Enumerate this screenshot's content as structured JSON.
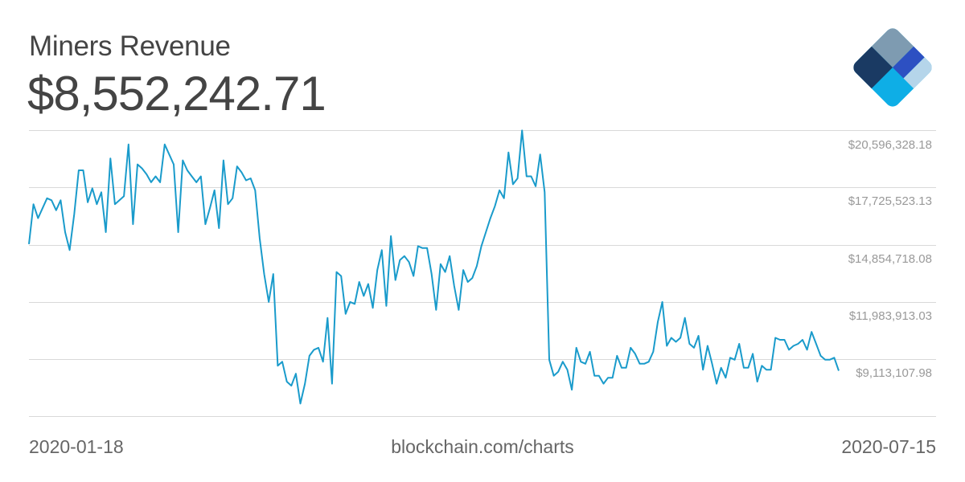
{
  "header": {
    "title": "Miners Revenue",
    "current_value": "$8,552,242.71"
  },
  "logo": {
    "name": "blockchain-logo",
    "colors": [
      "#7e9bb1",
      "#1a3a63",
      "#2d50c2",
      "#b5d5ea",
      "#0eaee6"
    ]
  },
  "footer": {
    "start_date": "2020-01-18",
    "source": "blockchain.com/charts",
    "end_date": "2020-07-15"
  },
  "colors": {
    "line": "#1a9bcb",
    "grid": "#d9d9d9",
    "title_text": "#444444",
    "tick_text": "#999999"
  },
  "chart_data": {
    "type": "line",
    "title": "Miners Revenue",
    "xlabel": "",
    "ylabel": "USD",
    "x_range": [
      "2020-01-18",
      "2020-07-15"
    ],
    "y_ticks": [
      "$20,596,328.18",
      "$17,725,523.13",
      "$14,854,718.08",
      "$11,983,913.03",
      "$9,113,107.98"
    ],
    "y_tick_values": [
      20596328.18,
      17725523.13,
      14854718.08,
      11983913.03,
      9113107.98
    ],
    "ylim": [
      6242302.93,
      20596328.18
    ],
    "grid": true,
    "legend": "none",
    "latest_value": 8552242.71,
    "series": [
      {
        "name": "Miners Revenue",
        "approx_values_musd": [
          14.9,
          16.9,
          16.2,
          16.7,
          17.2,
          17.1,
          16.6,
          17.1,
          15.5,
          14.6,
          16.4,
          18.6,
          18.6,
          17.0,
          17.7,
          16.9,
          17.5,
          15.5,
          19.2,
          16.9,
          17.1,
          17.3,
          19.9,
          15.9,
          18.9,
          18.7,
          18.4,
          18.0,
          18.3,
          18.0,
          19.9,
          19.4,
          18.9,
          15.5,
          19.1,
          18.6,
          18.3,
          18.0,
          18.3,
          15.9,
          16.7,
          17.6,
          15.7,
          19.1,
          16.9,
          17.2,
          18.8,
          18.5,
          18.1,
          18.2,
          17.6,
          15.2,
          13.4,
          12.0,
          13.4,
          8.8,
          9.0,
          8.0,
          7.8,
          8.4,
          6.9,
          7.9,
          9.3,
          9.6,
          9.7,
          9.0,
          11.2,
          7.9,
          13.5,
          13.3,
          11.4,
          12.0,
          11.9,
          13.0,
          12.3,
          12.9,
          11.7,
          13.6,
          14.6,
          11.8,
          15.3,
          13.1,
          14.1,
          14.3,
          14.0,
          13.3,
          14.8,
          14.7,
          14.7,
          13.4,
          11.6,
          13.9,
          13.5,
          14.3,
          12.8,
          11.6,
          13.6,
          13.0,
          13.2,
          13.8,
          14.8,
          15.5,
          16.2,
          16.8,
          17.6,
          17.2,
          19.5,
          17.9,
          18.2,
          20.6,
          18.3,
          18.3,
          17.8,
          19.4,
          17.5,
          9.1,
          8.3,
          8.5,
          9.0,
          8.6,
          7.6,
          9.7,
          9.0,
          8.9,
          9.5,
          8.3,
          8.3,
          7.9,
          8.2,
          8.2,
          9.3,
          8.7,
          8.7,
          9.7,
          9.4,
          8.9,
          8.9,
          9.0,
          9.5,
          11.0,
          12.0,
          9.8,
          10.2,
          10.0,
          10.2,
          11.2,
          9.9,
          9.7,
          10.3,
          8.6,
          9.8,
          8.9,
          7.9,
          8.7,
          8.2,
          9.2,
          9.1,
          9.9,
          8.7,
          8.7,
          9.4,
          8.0,
          8.8,
          8.6,
          8.6,
          10.2,
          10.1,
          10.1,
          9.6,
          9.8,
          9.9,
          10.1,
          9.6,
          10.5,
          9.9,
          9.3,
          9.1,
          9.1,
          9.2,
          8.55
        ]
      }
    ]
  }
}
